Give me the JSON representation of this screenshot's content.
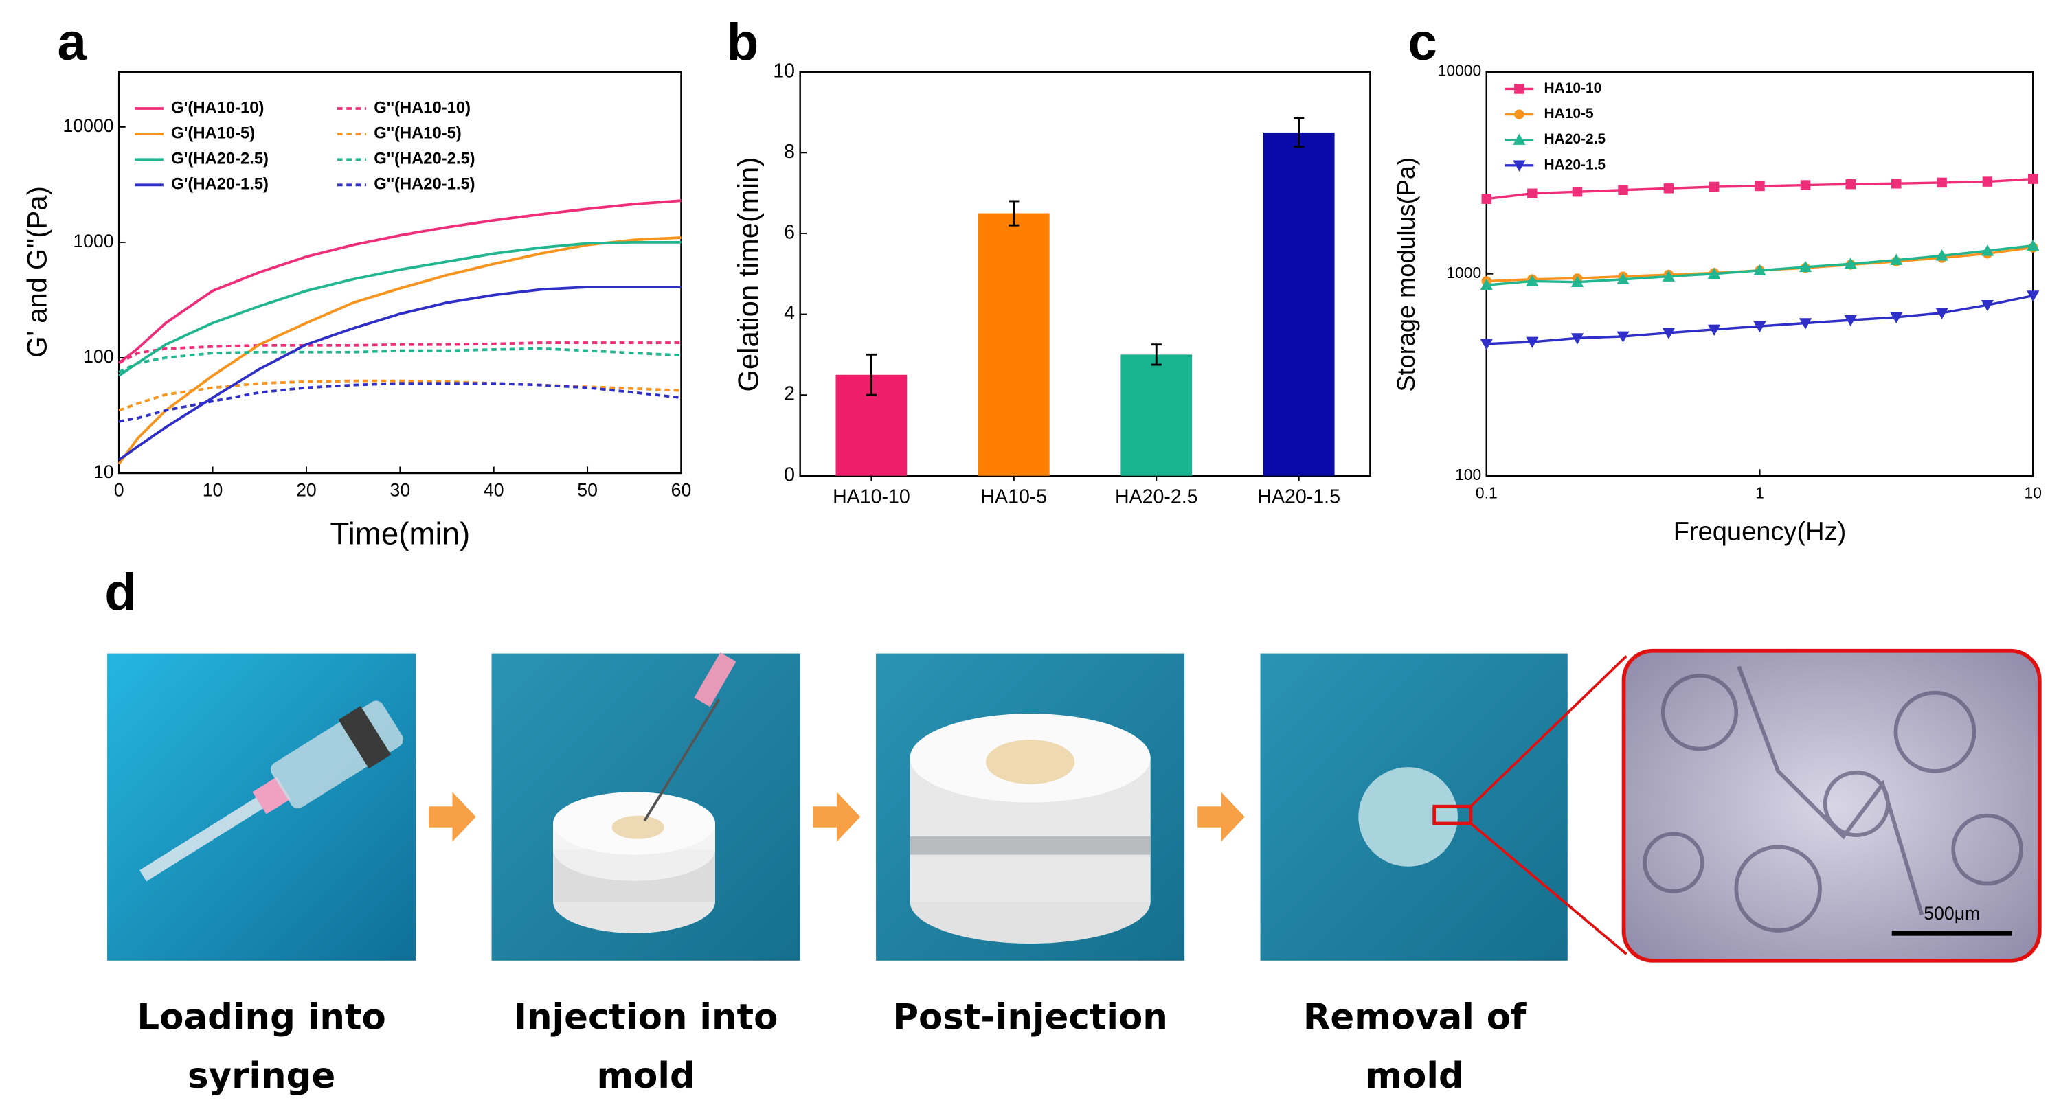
{
  "chart_data": [
    {
      "type": "line",
      "panel": "a",
      "x_label": "Time(min)",
      "y_label": "G' and G''(Pa)",
      "log_y": true,
      "x": [
        0,
        2,
        5,
        10,
        15,
        20,
        25,
        30,
        35,
        40,
        45,
        50,
        55,
        60
      ],
      "xlim": [
        0,
        60
      ],
      "xticks": [
        0,
        10,
        20,
        30,
        40,
        50,
        60
      ],
      "ylim": [
        10,
        30000
      ],
      "yticks": [
        10,
        100,
        1000,
        10000
      ],
      "series": [
        {
          "name": "G'(HA10-10)",
          "color": "#ef2e7a",
          "style": "solid",
          "values": [
            90,
            120,
            200,
            380,
            550,
            750,
            950,
            1150,
            1350,
            1550,
            1750,
            1950,
            2150,
            2300
          ]
        },
        {
          "name": "G''(HA10-10)",
          "color": "#ef2e7a",
          "style": "dashed",
          "values": [
            90,
            110,
            120,
            125,
            128,
            128,
            128,
            130,
            130,
            132,
            135,
            135,
            135,
            135
          ]
        },
        {
          "name": "G'(HA10-5)",
          "color": "#f7941d",
          "style": "solid",
          "values": [
            12,
            20,
            35,
            70,
            130,
            200,
            300,
            400,
            520,
            650,
            800,
            950,
            1050,
            1100
          ]
        },
        {
          "name": "G''(HA10-5)",
          "color": "#f7941d",
          "style": "dashed",
          "values": [
            35,
            40,
            48,
            55,
            60,
            62,
            63,
            63,
            62,
            60,
            58,
            56,
            54,
            52
          ]
        },
        {
          "name": "G'(HA20-2.5)",
          "color": "#21b68f",
          "style": "solid",
          "values": [
            70,
            90,
            130,
            200,
            280,
            380,
            480,
            580,
            680,
            800,
            900,
            980,
            1000,
            1000
          ]
        },
        {
          "name": "G''(HA20-2.5)",
          "color": "#21b68f",
          "style": "dashed",
          "values": [
            75,
            90,
            100,
            110,
            112,
            112,
            112,
            115,
            115,
            118,
            120,
            115,
            110,
            105
          ]
        },
        {
          "name": "G'(HA20-1.5)",
          "color": "#2f2fc8",
          "style": "solid",
          "values": [
            13,
            17,
            25,
            45,
            80,
            130,
            180,
            240,
            300,
            350,
            390,
            410,
            410,
            410
          ]
        },
        {
          "name": "G''(HA20-1.5)",
          "color": "#2f2fc8",
          "style": "dashed",
          "values": [
            28,
            30,
            35,
            42,
            50,
            55,
            58,
            60,
            60,
            60,
            58,
            55,
            50,
            45
          ]
        }
      ]
    },
    {
      "type": "bar",
      "panel": "b",
      "y_label": "Gelation time(min)",
      "categories": [
        "HA10-10",
        "HA10-5",
        "HA20-2.5",
        "HA20-1.5"
      ],
      "values": [
        2.5,
        6.5,
        3.0,
        8.5
      ],
      "errors": [
        0.5,
        0.3,
        0.25,
        0.35
      ],
      "colors": [
        "#ee1f6a",
        "#ff8000",
        "#18b38f",
        "#0a0aa8"
      ],
      "ylim": [
        0,
        10
      ],
      "yticks": [
        0,
        2,
        4,
        6,
        8,
        10
      ]
    },
    {
      "type": "scatter_line",
      "panel": "c",
      "x_label": "Frequency(Hz)",
      "y_label": "Storage modulus(Pa)",
      "log_x": true,
      "log_y": true,
      "x": [
        0.1,
        0.147,
        0.215,
        0.316,
        0.464,
        0.681,
        1,
        1.47,
        2.15,
        3.16,
        4.64,
        6.81,
        10
      ],
      "xlim": [
        0.1,
        10
      ],
      "xticks": [
        0.1,
        1,
        10
      ],
      "ylim": [
        100,
        10000
      ],
      "yticks": [
        100,
        1000,
        10000
      ],
      "series": [
        {
          "name": "HA10-10",
          "color": "#ef2e7a",
          "marker": "square",
          "values": [
            2350,
            2500,
            2550,
            2600,
            2650,
            2700,
            2720,
            2750,
            2780,
            2800,
            2830,
            2860,
            2950
          ]
        },
        {
          "name": "HA10-5",
          "color": "#f7941d",
          "marker": "circle",
          "values": [
            920,
            940,
            950,
            970,
            990,
            1010,
            1040,
            1070,
            1110,
            1150,
            1200,
            1260,
            1350
          ]
        },
        {
          "name": "HA20-2.5",
          "color": "#21b68f",
          "marker": "triangle-up",
          "values": [
            880,
            920,
            910,
            940,
            970,
            1000,
            1040,
            1080,
            1120,
            1170,
            1230,
            1300,
            1380
          ]
        },
        {
          "name": "HA20-1.5",
          "color": "#2f2fc8",
          "marker": "triangle-down",
          "values": [
            450,
            460,
            480,
            490,
            510,
            530,
            550,
            570,
            590,
            610,
            640,
            700,
            780
          ]
        }
      ]
    }
  ],
  "photo_panel": {
    "label": "d",
    "scale_bar": "500μm",
    "steps": [
      [
        "Loading into",
        "syringe"
      ],
      [
        "Injection into",
        "mold"
      ],
      [
        "Post-injection"
      ],
      [
        "Removal of",
        "mold"
      ]
    ]
  }
}
